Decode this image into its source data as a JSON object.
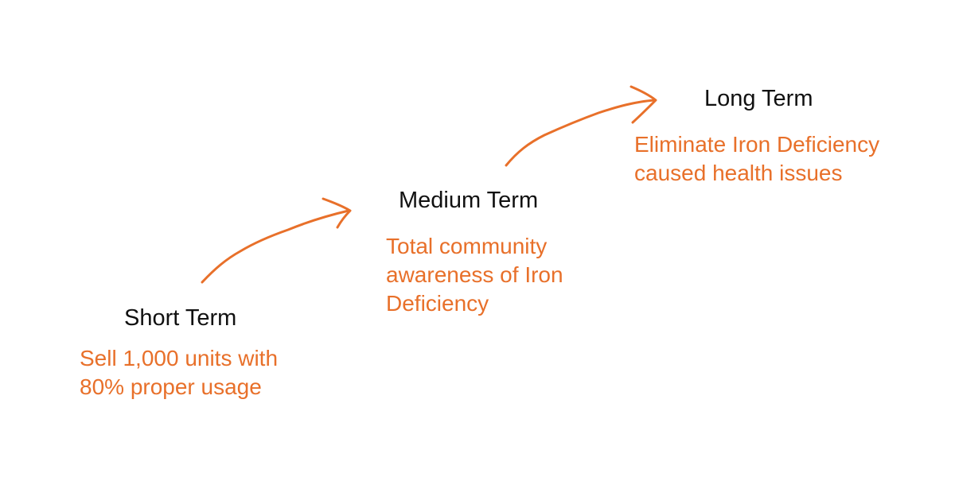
{
  "colors": {
    "accent": "#e8702a",
    "title_text": "#111111",
    "background": "#ffffff"
  },
  "stages": [
    {
      "id": "short",
      "title": "Short Term",
      "description": [
        "Sell 1,000 units with",
        "80% proper usage"
      ]
    },
    {
      "id": "medium",
      "title": "Medium Term",
      "description": [
        "Total community",
        "awareness of Iron",
        "Deficiency"
      ]
    },
    {
      "id": "long",
      "title": "Long Term",
      "description": [
        "Eliminate Iron Deficiency",
        "caused health issues"
      ]
    }
  ],
  "connectors": [
    {
      "from": "short",
      "to": "medium",
      "icon": "hand-drawn-arrow-icon"
    },
    {
      "from": "medium",
      "to": "long",
      "icon": "hand-drawn-arrow-icon"
    }
  ]
}
